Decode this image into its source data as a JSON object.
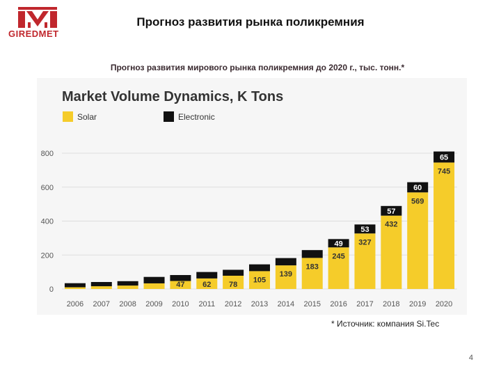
{
  "header": {
    "logo_text": "GIREDMET",
    "title": "Прогноз развития рынка поликремния"
  },
  "caption": "Прогноз развития мирового рынка поликремния до 2020 г., тыс. тонн.*",
  "source_note": "* Источник: компания Si.Tec",
  "page_number": "4",
  "colors": {
    "brand": "#c0272d",
    "solar": "#f5cc2a",
    "electronic": "#111111",
    "grid": "#dddddd"
  },
  "chart_data": {
    "type": "bar",
    "stacked": true,
    "title": "Market Volume Dynamics, K Tons",
    "xlabel": "",
    "ylabel": "",
    "ylim": [
      0,
      800
    ],
    "yticks": [
      0,
      200,
      400,
      600,
      800
    ],
    "grid": true,
    "legend_position": "top-left",
    "categories": [
      "2006",
      "2007",
      "2008",
      "2009",
      "2010",
      "2011",
      "2012",
      "2013",
      "2014",
      "2015",
      "2016",
      "2017",
      "2018",
      "2019",
      "2020"
    ],
    "series": [
      {
        "name": "Solar",
        "color": "#f5cc2a",
        "values": [
          10,
          16,
          20,
          33,
          47,
          62,
          78,
          105,
          139,
          183,
          245,
          327,
          432,
          569,
          745
        ],
        "labels": [
          "",
          "",
          "",
          "",
          "47",
          "62",
          "78",
          "105",
          "139",
          "183",
          "245",
          "327",
          "432",
          "569",
          "745"
        ]
      },
      {
        "name": "Electronic",
        "color": "#111111",
        "values": [
          24,
          25,
          26,
          38,
          35,
          38,
          35,
          40,
          43,
          46,
          49,
          53,
          57,
          60,
          65
        ],
        "labels": [
          "",
          "",
          "",
          "",
          "",
          "",
          "",
          "",
          "",
          "",
          "49",
          "53",
          "57",
          "60",
          "65"
        ]
      }
    ]
  }
}
